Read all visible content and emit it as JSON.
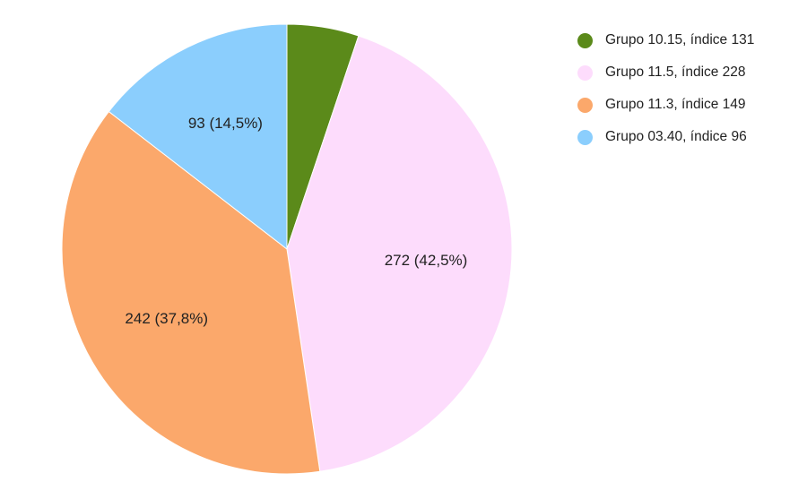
{
  "chart_data": {
    "type": "pie",
    "slices": [
      {
        "name": "Grupo 10.15, índice 131",
        "value": 33,
        "percent": 5.2,
        "color": "#5b8a1a",
        "label": ""
      },
      {
        "name": "Grupo 11.5, índice 228",
        "value": 272,
        "percent": 42.5,
        "color": "#fddcfc",
        "label": "272 (42,5%)"
      },
      {
        "name": "Grupo 11.3, índice 149",
        "value": 242,
        "percent": 37.8,
        "color": "#fba86b",
        "label": "242 (37,8%)"
      },
      {
        "name": "Grupo 03.40, índice 96",
        "value": 93,
        "percent": 14.5,
        "color": "#8bcefd",
        "label": "93 (14,5%)"
      }
    ],
    "legend_position": "top-right",
    "start_angle": "12 o'clock",
    "direction": "clockwise"
  },
  "legend": {
    "items": [
      {
        "label": "Grupo 10.15, índice 131",
        "color": "#5b8a1a",
        "icon": "circle-swatch-icon"
      },
      {
        "label": "Grupo 11.5, índice 228",
        "color": "#fddcfc",
        "icon": "circle-swatch-icon"
      },
      {
        "label": "Grupo 11.3, índice 149",
        "color": "#fba86b",
        "icon": "circle-swatch-icon"
      },
      {
        "label": "Grupo 03.40, índice 96",
        "color": "#8bcefd",
        "icon": "circle-swatch-icon"
      }
    ]
  }
}
